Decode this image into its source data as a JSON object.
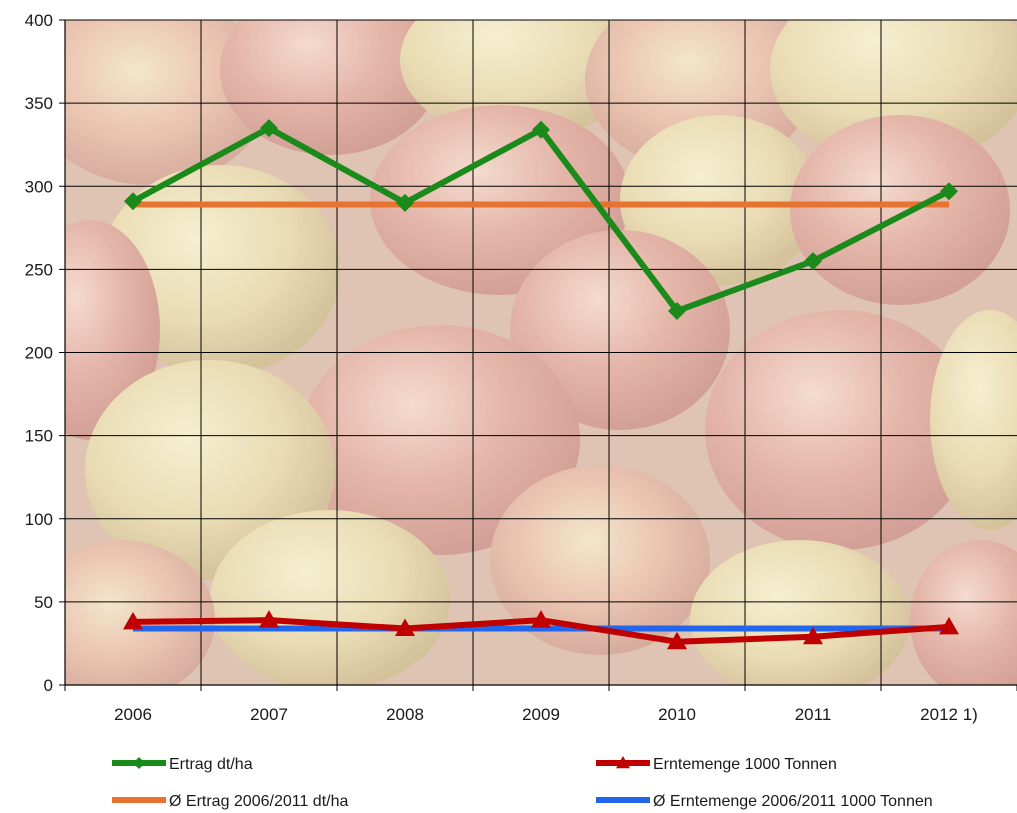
{
  "chart_data": {
    "type": "line",
    "title": "",
    "xlabel": "",
    "ylabel": "",
    "categories": [
      "2006",
      "2007",
      "2008",
      "2009",
      "2010",
      "2011",
      "2012 1)"
    ],
    "ylim": [
      0,
      400
    ],
    "yticks": [
      0,
      50,
      100,
      150,
      200,
      250,
      300,
      350,
      400
    ],
    "grid": true,
    "legend_position": "bottom",
    "background": "photo of apples",
    "series": [
      {
        "name": "Ertrag dt/ha",
        "color": "#1a8a1a",
        "marker": "diamond",
        "values": [
          291,
          335,
          290,
          334,
          225,
          255,
          297
        ]
      },
      {
        "name": "Erntemenge 1000 Tonnen",
        "color": "#c00000",
        "marker": "triangle",
        "values": [
          38,
          39,
          34,
          39,
          26,
          29,
          35
        ]
      },
      {
        "name": "Ø Ertrag 2006/2011 dt/ha",
        "color": "#e87330",
        "marker": "none",
        "values": [
          289,
          289,
          289,
          289,
          289,
          289,
          289
        ]
      },
      {
        "name": "Ø Erntemenge 2006/2011 1000 Tonnen",
        "color": "#2266ee",
        "marker": "none",
        "values": [
          34,
          34,
          34,
          34,
          34,
          34,
          34
        ]
      }
    ]
  }
}
